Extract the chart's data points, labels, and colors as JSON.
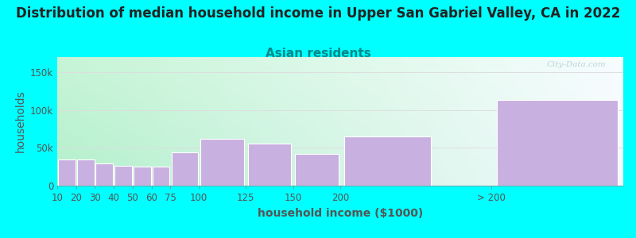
{
  "title": "Distribution of median household income in Upper San Gabriel Valley, CA in 2022",
  "subtitle": "Asian residents",
  "xlabel": "household income ($1000)",
  "ylabel": "households",
  "bar_labels": [
    "10",
    "20",
    "30",
    "40",
    "50",
    "60",
    "75",
    "100",
    "125",
    "150",
    "200",
    "> 200"
  ],
  "bar_values": [
    35000,
    35000,
    29000,
    26000,
    25000,
    25000,
    44000,
    62000,
    56000,
    42000,
    65000,
    113000
  ],
  "bar_color": "#c8b0e0",
  "bar_edgecolor": "#ffffff",
  "ylim": [
    0,
    170000
  ],
  "yticks": [
    0,
    50000,
    100000,
    150000
  ],
  "ytick_labels": [
    "0",
    "50k",
    "100k",
    "150k"
  ],
  "background_color": "#00ffff",
  "plot_bg_color_topleft": "#c8f0d8",
  "plot_bg_color_topright": "#f8f8ff",
  "plot_bg_color_bottomleft": "#b0e8c8",
  "plot_bg_color_bottomright": "#f0f0ff",
  "grid_color": "#dddddd",
  "title_fontsize": 12,
  "subtitle_fontsize": 11,
  "subtitle_color": "#008888",
  "axis_label_fontsize": 10,
  "tick_fontsize": 8.5,
  "tick_color": "#555555",
  "watermark": "City-Data.com",
  "title_color": "#222222"
}
